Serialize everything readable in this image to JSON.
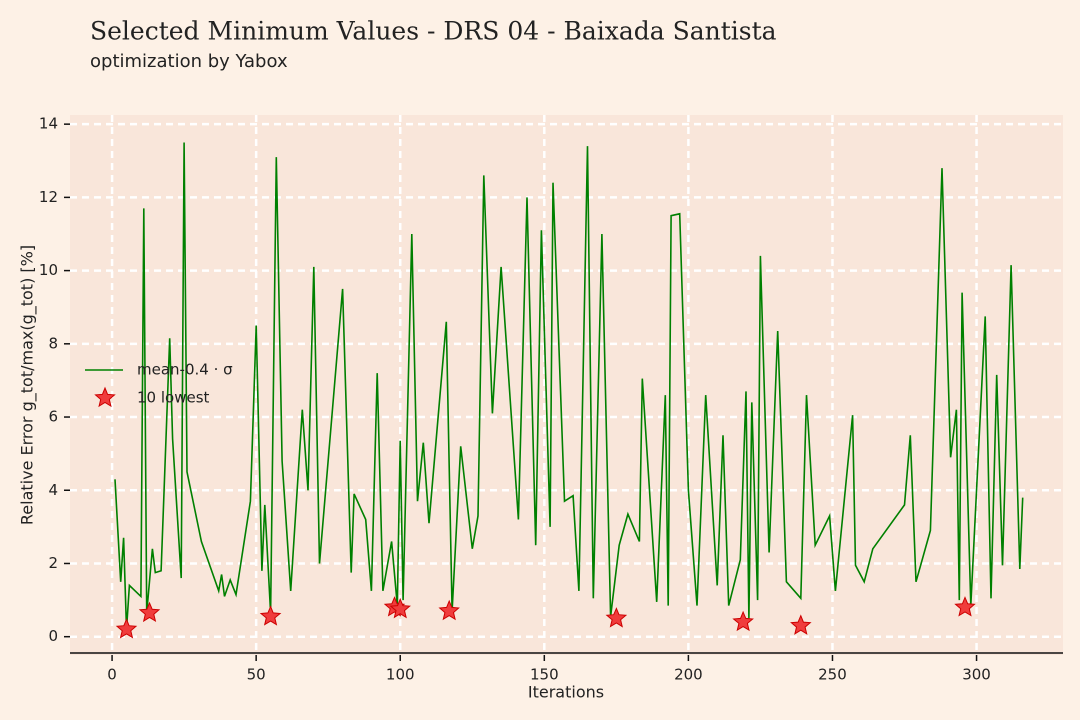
{
  "chart_data": {
    "type": "line",
    "title": "Selected Minimum Values - DRS 04 - Baixada Santista",
    "subtitle": "optimization by Yabox",
    "x_label": "Iterations",
    "y_label": "Relative Error g_tot/max(g_tot) [%]",
    "xlim": [
      -14.6,
      330
    ],
    "ylim": [
      -0.5,
      14.25
    ],
    "xticks": [
      0,
      50,
      100,
      150,
      200,
      250,
      300
    ],
    "yticks": [
      0,
      2,
      4,
      6,
      8,
      10,
      12,
      14
    ],
    "grid": true,
    "legend": "center-left",
    "series": [
      {
        "name": "mean-0.4 · σ",
        "type": "line",
        "color": "#008000",
        "x": [
          1,
          3,
          4,
          5,
          6,
          10,
          11,
          12,
          14,
          15,
          17,
          20,
          21,
          24,
          25,
          26,
          31,
          37,
          38,
          39,
          41,
          43,
          48,
          50,
          52,
          53,
          55,
          57,
          59,
          62,
          66,
          68,
          70,
          72,
          80,
          83,
          84,
          88,
          90,
          92,
          94,
          97,
          99,
          100,
          101,
          104,
          106,
          108,
          110,
          116,
          118,
          121,
          125,
          127,
          129,
          132,
          135,
          141,
          144,
          147,
          149,
          152,
          153,
          157,
          160,
          162,
          165,
          167,
          170,
          173,
          176,
          179,
          183,
          184,
          189,
          192,
          193,
          194,
          197,
          200,
          203,
          206,
          210,
          212,
          214,
          218,
          220,
          221,
          222,
          224,
          225,
          228,
          231,
          234,
          239,
          241,
          244,
          249,
          251,
          257,
          258,
          261,
          264,
          275,
          277,
          279,
          284,
          288,
          291,
          293,
          294,
          295,
          298,
          303,
          305,
          307,
          309,
          312,
          315,
          316
        ],
        "values": [
          4.3,
          1.5,
          2.7,
          0.2,
          1.4,
          1.1,
          11.7,
          0.65,
          2.4,
          1.75,
          1.8,
          8.15,
          5.4,
          1.6,
          13.5,
          4.5,
          2.6,
          1.25,
          1.7,
          1.1,
          1.55,
          1.15,
          3.7,
          8.5,
          1.8,
          3.6,
          0.65,
          13.1,
          4.8,
          1.25,
          6.2,
          4.0,
          10.1,
          2.0,
          9.5,
          1.75,
          3.9,
          3.2,
          1.25,
          7.2,
          1.25,
          2.6,
          0.85,
          5.35,
          1.0,
          11.0,
          3.7,
          5.3,
          3.1,
          8.6,
          0.7,
          5.2,
          2.4,
          3.3,
          12.6,
          6.1,
          10.1,
          3.2,
          12.0,
          2.5,
          11.1,
          3.0,
          12.4,
          3.7,
          3.85,
          1.25,
          13.4,
          1.05,
          11.0,
          0.55,
          2.5,
          3.35,
          2.6,
          7.05,
          0.95,
          6.6,
          0.85,
          11.5,
          11.55,
          4.0,
          0.85,
          6.6,
          1.4,
          5.5,
          0.85,
          2.1,
          6.7,
          0.5,
          6.4,
          1.0,
          10.4,
          2.3,
          8.35,
          1.5,
          1.05,
          6.6,
          2.5,
          3.3,
          1.25,
          6.05,
          1.95,
          1.5,
          2.4,
          3.6,
          5.5,
          1.5,
          2.9,
          12.8,
          4.9,
          6.2,
          1.0,
          9.4,
          0.85,
          8.75,
          1.05,
          7.15,
          1.95,
          10.15,
          1.85,
          3.8
        ]
      },
      {
        "name": "10 lowest",
        "type": "scatter",
        "color": "#f03c3c",
        "x": [
          5,
          13,
          55,
          98,
          100,
          117,
          175,
          219,
          239,
          296
        ],
        "values": [
          0.2,
          0.65,
          0.55,
          0.8,
          0.75,
          0.7,
          0.5,
          0.4,
          0.3,
          0.8
        ]
      }
    ]
  }
}
